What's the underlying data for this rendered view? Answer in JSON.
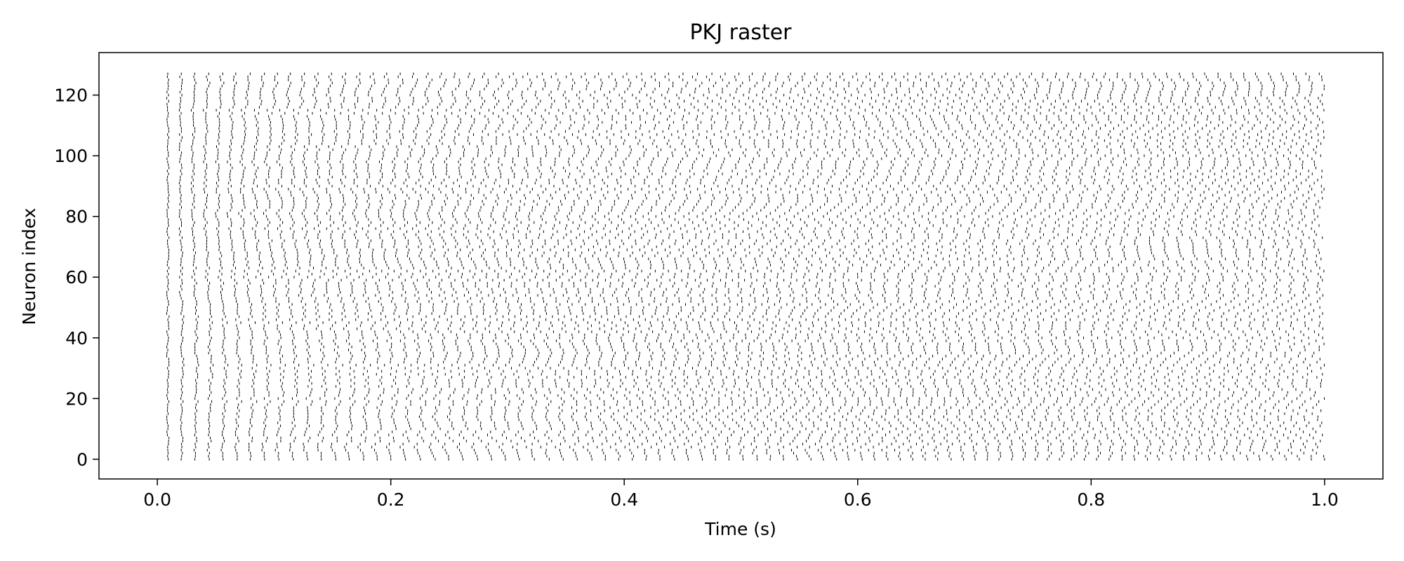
{
  "chart_data": {
    "type": "scatter",
    "title": "PKJ raster",
    "xlabel": "Time (s)",
    "ylabel": "Neuron index",
    "xlim": [
      -0.05,
      1.05
    ],
    "ylim": [
      -6.5,
      134
    ],
    "xticks": [
      0.0,
      0.2,
      0.4,
      0.6,
      0.8,
      1.0
    ],
    "xtick_labels": [
      "0.0",
      "0.2",
      "0.4",
      "0.6",
      "0.8",
      "1.0"
    ],
    "yticks": [
      0,
      20,
      40,
      60,
      80,
      100,
      120
    ],
    "ytick_labels": [
      "0",
      "20",
      "40",
      "60",
      "80",
      "100",
      "120"
    ],
    "grid": false,
    "marker": "|",
    "marker_color": "#000000",
    "n_neurons": 128,
    "spike_pattern": {
      "description_free": true,
      "first_spike_time": 0.008,
      "last_spike_time": 1.0,
      "mean_interval": 0.0114,
      "interval_jitter": 0.0016
    }
  }
}
